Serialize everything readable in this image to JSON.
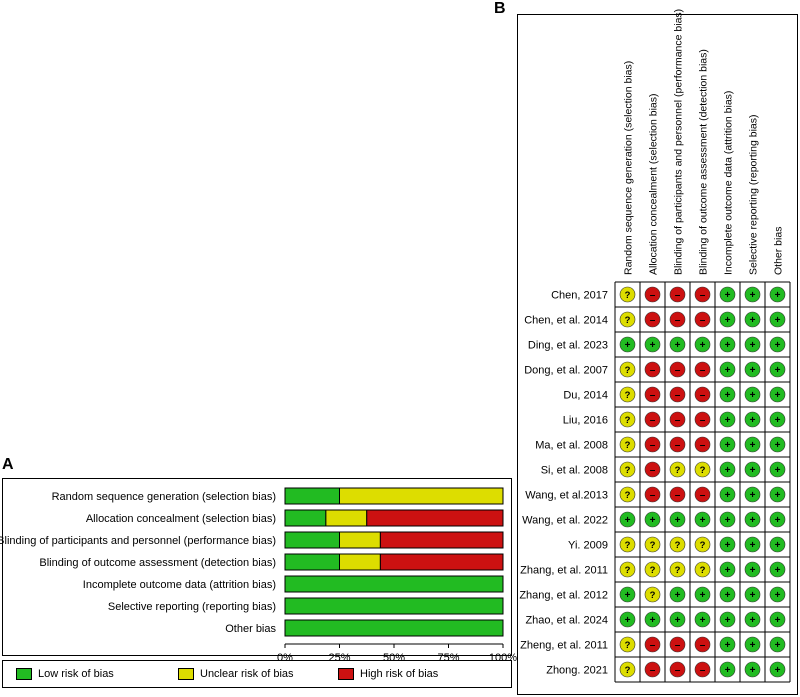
{
  "panels": {
    "a_label": "A",
    "b_label": "B"
  },
  "colors": {
    "low": "#22bb22",
    "unclear": "#dddd00",
    "high": "#cc1111"
  },
  "chart_data": [
    {
      "type": "bar",
      "orientation": "horizontal",
      "stacked": true,
      "panel": "A",
      "categories": [
        "Random sequence generation (selection bias)",
        "Allocation concealment (selection bias)",
        "Blinding of participants and personnel (performance bias)",
        "Blinding of outcome assessment (detection bias)",
        "Incomplete outcome data (attrition bias)",
        "Selective reporting (reporting bias)",
        "Other bias"
      ],
      "series": [
        {
          "name": "Low risk of bias",
          "color": "#22bb22",
          "values": [
            25,
            18.75,
            25,
            25,
            100,
            100,
            100
          ]
        },
        {
          "name": "Unclear risk of bias",
          "color": "#dddd00",
          "values": [
            75,
            18.75,
            18.75,
            18.75,
            0,
            0,
            0
          ]
        },
        {
          "name": "High risk of bias",
          "color": "#cc1111",
          "values": [
            0,
            62.5,
            56.25,
            56.25,
            0,
            0,
            0
          ]
        }
      ],
      "xticks": [
        "0%",
        "25%",
        "50%",
        "75%",
        "100%"
      ],
      "xlim": [
        0,
        100
      ],
      "legend": [
        "Low risk of bias",
        "Unclear risk of bias",
        "High risk of bias"
      ]
    },
    {
      "type": "table",
      "panel": "B",
      "columns": [
        "Random sequence generation (selection bias)",
        "Allocation concealment (selection bias)",
        "Blinding of participants and personnel (performance bias)",
        "Blinding of outcome assessment (detection bias)",
        "Incomplete outcome data (attrition bias)",
        "Selective reporting (reporting bias)",
        "Other bias"
      ],
      "rows": [
        {
          "study": "Chen, 2017",
          "ratings": [
            "?",
            "-",
            "-",
            "-",
            "+",
            "+",
            "+"
          ]
        },
        {
          "study": "Chen, et al. 2014",
          "ratings": [
            "?",
            "-",
            "-",
            "-",
            "+",
            "+",
            "+"
          ]
        },
        {
          "study": "Ding, et al. 2023",
          "ratings": [
            "+",
            "+",
            "+",
            "+",
            "+",
            "+",
            "+"
          ]
        },
        {
          "study": "Dong, et al. 2007",
          "ratings": [
            "?",
            "-",
            "-",
            "-",
            "+",
            "+",
            "+"
          ]
        },
        {
          "study": "Du, 2014",
          "ratings": [
            "?",
            "-",
            "-",
            "-",
            "+",
            "+",
            "+"
          ]
        },
        {
          "study": "Liu, 2016",
          "ratings": [
            "?",
            "-",
            "-",
            "-",
            "+",
            "+",
            "+"
          ]
        },
        {
          "study": "Ma, et al. 2008",
          "ratings": [
            "?",
            "-",
            "-",
            "-",
            "+",
            "+",
            "+"
          ]
        },
        {
          "study": "Si, et al. 2008",
          "ratings": [
            "?",
            "-",
            "?",
            "?",
            "+",
            "+",
            "+"
          ]
        },
        {
          "study": "Wang, et al.2013",
          "ratings": [
            "?",
            "-",
            "-",
            "-",
            "+",
            "+",
            "+"
          ]
        },
        {
          "study": "Wang, et al. 2022",
          "ratings": [
            "+",
            "+",
            "+",
            "+",
            "+",
            "+",
            "+"
          ]
        },
        {
          "study": "Yi. 2009",
          "ratings": [
            "?",
            "?",
            "?",
            "?",
            "+",
            "+",
            "+"
          ]
        },
        {
          "study": "Zhang, et al. 2011",
          "ratings": [
            "?",
            "?",
            "?",
            "?",
            "+",
            "+",
            "+"
          ]
        },
        {
          "study": "Zhang, et al. 2012",
          "ratings": [
            "+",
            "?",
            "+",
            "+",
            "+",
            "+",
            "+"
          ]
        },
        {
          "study": "Zhao, et al. 2024",
          "ratings": [
            "+",
            "+",
            "+",
            "+",
            "+",
            "+",
            "+"
          ]
        },
        {
          "study": "Zheng, et al. 2011",
          "ratings": [
            "?",
            "-",
            "-",
            "-",
            "+",
            "+",
            "+"
          ]
        },
        {
          "study": "Zhong. 2021",
          "ratings": [
            "?",
            "-",
            "-",
            "-",
            "+",
            "+",
            "+"
          ]
        }
      ]
    }
  ]
}
